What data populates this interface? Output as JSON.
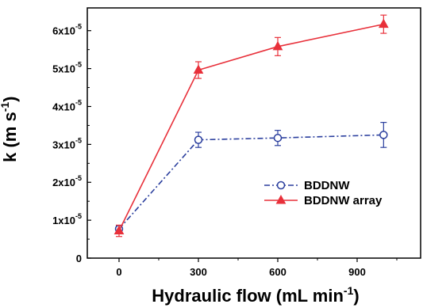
{
  "chart_data": {
    "type": "line",
    "xlabel_main": "Hydraulic flow (mL min",
    "xlabel_sup": "-1",
    "xlabel_close": ")",
    "ylabel_main": "k (m s",
    "ylabel_sup": "-1",
    "ylabel_close": ")",
    "xlim": [
      -120,
      1140
    ],
    "ylim": [
      0,
      6.6
    ],
    "y_exponent": "-5",
    "x_ticks": [
      "0",
      "300",
      "600",
      "900"
    ],
    "x_tick_values": [
      0,
      300,
      600,
      900
    ],
    "y_ticks": [
      "0",
      "1x10",
      "2x10",
      "3x10",
      "4x10",
      "5x10",
      "6x10"
    ],
    "y_tick_values": [
      0,
      1,
      2,
      3,
      4,
      5,
      6
    ],
    "grid": false,
    "legend_position": "lower-right",
    "series": [
      {
        "name": "BDDNW",
        "color": "#2b3f9e",
        "line_style": "dash-dot",
        "marker": "open-circle",
        "x": [
          0,
          300,
          600,
          1000
        ],
        "y": [
          0.77,
          3.12,
          3.17,
          3.25
        ],
        "err": [
          0.08,
          0.2,
          0.2,
          0.33
        ]
      },
      {
        "name": "BDDNW array",
        "color": "#e8303a",
        "line_style": "solid",
        "marker": "filled-triangle",
        "x": [
          0,
          300,
          600,
          1000
        ],
        "y": [
          0.72,
          4.96,
          5.58,
          6.17
        ],
        "err": [
          0.15,
          0.22,
          0.24,
          0.24
        ]
      }
    ]
  }
}
